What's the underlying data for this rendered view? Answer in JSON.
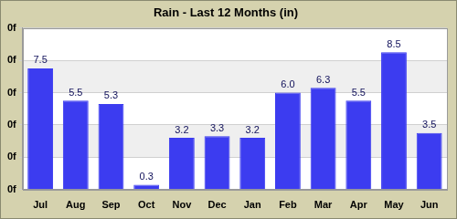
{
  "chart_data": {
    "type": "bar",
    "title": "Rain - Last 12 Months (in)",
    "categories": [
      "Jul",
      "Aug",
      "Sep",
      "Oct",
      "Nov",
      "Dec",
      "Jan",
      "Feb",
      "Mar",
      "Apr",
      "May",
      "Jun"
    ],
    "values": [
      7.5,
      5.5,
      5.3,
      0.3,
      3.2,
      3.3,
      3.2,
      6.0,
      6.3,
      5.5,
      8.5,
      3.5
    ],
    "value_labels": [
      "7.5",
      "5.5",
      "5.3",
      "0.3",
      "3.2",
      "3.3",
      "3.2",
      "6.0",
      "6.3",
      "5.5",
      "8.5",
      "3.5"
    ],
    "color": "#3c3cf0",
    "ylim": [
      0,
      10
    ],
    "yticks": [
      {
        "value": 0,
        "label": "0f"
      },
      {
        "value": 2,
        "label": "0f"
      },
      {
        "value": 4,
        "label": "0f"
      },
      {
        "value": 6,
        "label": "0f"
      },
      {
        "value": 8,
        "label": "0f"
      },
      {
        "value": 10,
        "label": "0f"
      }
    ],
    "grid": true,
    "data_labels": true
  }
}
